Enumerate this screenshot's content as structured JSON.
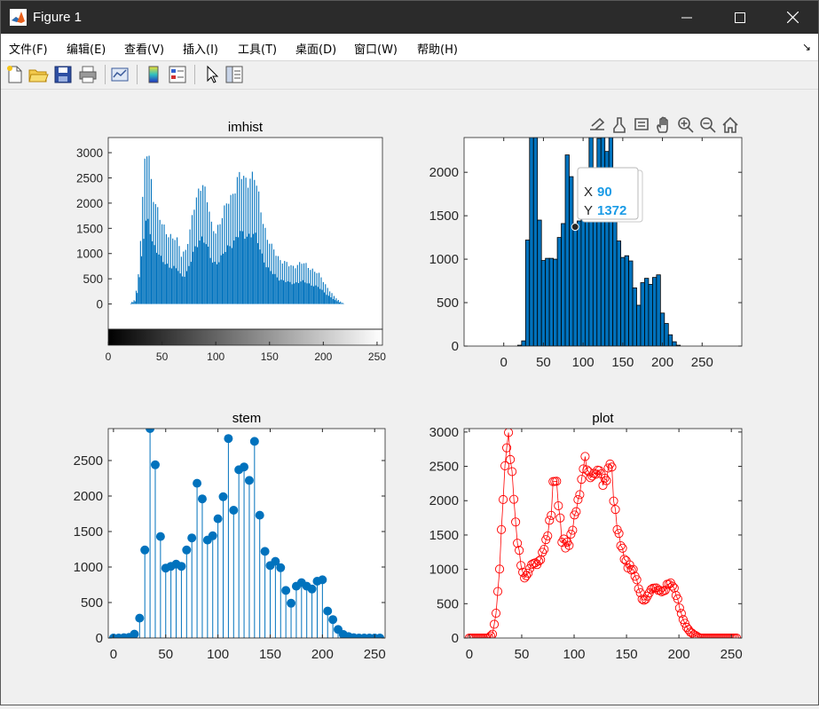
{
  "window": {
    "title": "Figure 1",
    "app_icon": "matlab-icon"
  },
  "menu": {
    "items": [
      "文件(F)",
      "编辑(E)",
      "查看(V)",
      "插入(I)",
      "工具(T)",
      "桌面(D)",
      "窗口(W)",
      "帮助(H)"
    ],
    "arrow": "↘"
  },
  "toolbar": {
    "icons": [
      "new-figure-icon",
      "open-file-icon",
      "save-icon",
      "print-icon",
      "link-plot-icon",
      "colorbar-icon",
      "legend-icon",
      "edit-plot-arrow-icon",
      "property-inspector-icon"
    ]
  },
  "axes_toolbar": {
    "icons": [
      "export-icon",
      "brush-icon",
      "data-tips-icon",
      "pan-icon",
      "zoom-in-icon",
      "zoom-out-icon",
      "home-icon"
    ]
  },
  "datatip": {
    "x_label": "X",
    "x_value": "90",
    "y_label": "Y",
    "y_value": "1372"
  },
  "colors": {
    "matlab_blue": "#0072bd",
    "plot_red": "#ff0000",
    "datatip_blue": "#1a9be6"
  },
  "chart_data": [
    {
      "type": "bar",
      "title": "imhist",
      "xlim": [
        0,
        255
      ],
      "ylim": [
        -500,
        3300
      ],
      "xticks": [
        0,
        50,
        100,
        150,
        200,
        250
      ],
      "yticks": [
        0,
        500,
        1000,
        1500,
        2000,
        2500,
        3000
      ],
      "colorbar": "grayscale",
      "peaks": [
        [
          0,
          0
        ],
        [
          20,
          0
        ],
        [
          25,
          100
        ],
        [
          28,
          600
        ],
        [
          30,
          1300
        ],
        [
          32,
          2000
        ],
        [
          34,
          2700
        ],
        [
          36,
          3000
        ],
        [
          38,
          2950
        ],
        [
          40,
          2500
        ],
        [
          42,
          2200
        ],
        [
          44,
          2000
        ],
        [
          46,
          1800
        ],
        [
          48,
          1650
        ],
        [
          50,
          1550
        ],
        [
          55,
          1450
        ],
        [
          60,
          1300
        ],
        [
          65,
          1200
        ],
        [
          68,
          1000
        ],
        [
          72,
          1100
        ],
        [
          76,
          1400
        ],
        [
          80,
          1900
        ],
        [
          84,
          2300
        ],
        [
          86,
          2450
        ],
        [
          88,
          2400
        ],
        [
          90,
          2200
        ],
        [
          93,
          1900
        ],
        [
          96,
          1550
        ],
        [
          100,
          1500
        ],
        [
          104,
          1600
        ],
        [
          108,
          1800
        ],
        [
          112,
          2100
        ],
        [
          116,
          2250
        ],
        [
          120,
          2400
        ],
        [
          124,
          2500
        ],
        [
          128,
          2500
        ],
        [
          132,
          2550
        ],
        [
          136,
          2450
        ],
        [
          140,
          2100
        ],
        [
          144,
          1700
        ],
        [
          148,
          1300
        ],
        [
          152,
          1100
        ],
        [
          156,
          1000
        ],
        [
          160,
          900
        ],
        [
          165,
          800
        ],
        [
          168,
          750
        ],
        [
          172,
          750
        ],
        [
          176,
          800
        ],
        [
          180,
          800
        ],
        [
          185,
          750
        ],
        [
          190,
          700
        ],
        [
          195,
          600
        ],
        [
          200,
          450
        ],
        [
          205,
          300
        ],
        [
          210,
          150
        ],
        [
          215,
          60
        ],
        [
          220,
          0
        ],
        [
          255,
          0
        ]
      ]
    },
    {
      "type": "bar",
      "title": "",
      "xlim": [
        -50,
        300
      ],
      "ylim": [
        0,
        2400
      ],
      "xticks": [
        0,
        50,
        100,
        150,
        200,
        250
      ],
      "yticks": [
        0,
        500,
        1000,
        1500,
        2000
      ],
      "bin_width": 5,
      "x": [
        0,
        5,
        10,
        15,
        20,
        25,
        30,
        35,
        40,
        45,
        50,
        55,
        60,
        65,
        70,
        75,
        80,
        85,
        90,
        95,
        100,
        105,
        110,
        115,
        120,
        125,
        130,
        135,
        140,
        145,
        150,
        155,
        160,
        165,
        170,
        175,
        180,
        185,
        190,
        195,
        200,
        205,
        210,
        215,
        220,
        225,
        230,
        235,
        240,
        245,
        250,
        255
      ],
      "values": [
        0,
        0,
        0,
        0,
        10,
        60,
        1220,
        2950,
        2400,
        1450,
        985,
        1010,
        1010,
        1000,
        1250,
        1410,
        2200,
        1950,
        1372,
        1440,
        1680,
        1990,
        2800,
        1790,
        2390,
        2410,
        2240,
        2770,
        1710,
        1210,
        1020,
        1040,
        980,
        670,
        470,
        730,
        780,
        710,
        790,
        820,
        380,
        260,
        130,
        50,
        10,
        0,
        0,
        0,
        0,
        0,
        0,
        0
      ]
    },
    {
      "type": "stem",
      "title": "stem",
      "xlim": [
        -5,
        260
      ],
      "ylim": [
        0,
        2950
      ],
      "xticks": [
        0,
        50,
        100,
        150,
        200,
        250
      ],
      "yticks": [
        0,
        500,
        1000,
        1500,
        2000,
        2500
      ],
      "x": [
        0,
        5,
        10,
        15,
        20,
        25,
        30,
        35,
        40,
        45,
        50,
        55,
        60,
        65,
        70,
        75,
        80,
        85,
        90,
        95,
        100,
        105,
        110,
        115,
        120,
        125,
        130,
        135,
        140,
        145,
        150,
        155,
        160,
        165,
        170,
        175,
        180,
        185,
        190,
        195,
        200,
        205,
        210,
        215,
        220,
        225,
        230,
        235,
        240,
        245,
        250,
        255
      ],
      "values": [
        0,
        0,
        5,
        10,
        55,
        280,
        1240,
        2950,
        2440,
        1430,
        985,
        1010,
        1040,
        1010,
        1240,
        1410,
        2180,
        1960,
        1380,
        1440,
        1680,
        1990,
        2810,
        1800,
        2370,
        2410,
        2220,
        2770,
        1730,
        1220,
        1020,
        1080,
        990,
        670,
        490,
        730,
        780,
        730,
        690,
        800,
        820,
        380,
        260,
        120,
        50,
        20,
        5,
        0,
        0,
        0,
        0,
        0
      ]
    },
    {
      "type": "line",
      "title": "plot",
      "marker": "circle",
      "xlim": [
        -5,
        260
      ],
      "ylim": [
        0,
        3050
      ],
      "xticks": [
        0,
        50,
        100,
        150,
        200,
        250
      ],
      "yticks": [
        0,
        500,
        1000,
        1500,
        2000,
        2500,
        3000
      ],
      "peaks": [
        [
          0,
          0
        ],
        [
          18,
          0
        ],
        [
          22,
          50
        ],
        [
          25,
          300
        ],
        [
          28,
          800
        ],
        [
          30,
          1300
        ],
        [
          32,
          1950
        ],
        [
          34,
          2400
        ],
        [
          36,
          2950
        ],
        [
          38,
          3000
        ],
        [
          40,
          2550
        ],
        [
          42,
          2200
        ],
        [
          44,
          1650
        ],
        [
          46,
          1350
        ],
        [
          48,
          1200
        ],
        [
          50,
          1000
        ],
        [
          53,
          900
        ],
        [
          56,
          950
        ],
        [
          60,
          1050
        ],
        [
          65,
          1100
        ],
        [
          70,
          1250
        ],
        [
          74,
          1400
        ],
        [
          78,
          1800
        ],
        [
          80,
          2300
        ],
        [
          82,
          2450
        ],
        [
          84,
          2150
        ],
        [
          86,
          1800
        ],
        [
          88,
          1400
        ],
        [
          92,
          1350
        ],
        [
          96,
          1450
        ],
        [
          100,
          1700
        ],
        [
          104,
          1950
        ],
        [
          107,
          2300
        ],
        [
          110,
          2750
        ],
        [
          112,
          2500
        ],
        [
          116,
          2250
        ],
        [
          120,
          2400
        ],
        [
          124,
          2550
        ],
        [
          128,
          2200
        ],
        [
          132,
          2300
        ],
        [
          135,
          2700
        ],
        [
          138,
          2050
        ],
        [
          142,
          1500
        ],
        [
          146,
          1250
        ],
        [
          150,
          1100
        ],
        [
          154,
          1050
        ],
        [
          158,
          900
        ],
        [
          162,
          700
        ],
        [
          166,
          550
        ],
        [
          170,
          600
        ],
        [
          174,
          700
        ],
        [
          178,
          750
        ],
        [
          182,
          700
        ],
        [
          186,
          650
        ],
        [
          190,
          800
        ],
        [
          194,
          800
        ],
        [
          198,
          600
        ],
        [
          202,
          350
        ],
        [
          206,
          200
        ],
        [
          210,
          100
        ],
        [
          214,
          50
        ],
        [
          220,
          0
        ],
        [
          255,
          0
        ]
      ]
    }
  ]
}
